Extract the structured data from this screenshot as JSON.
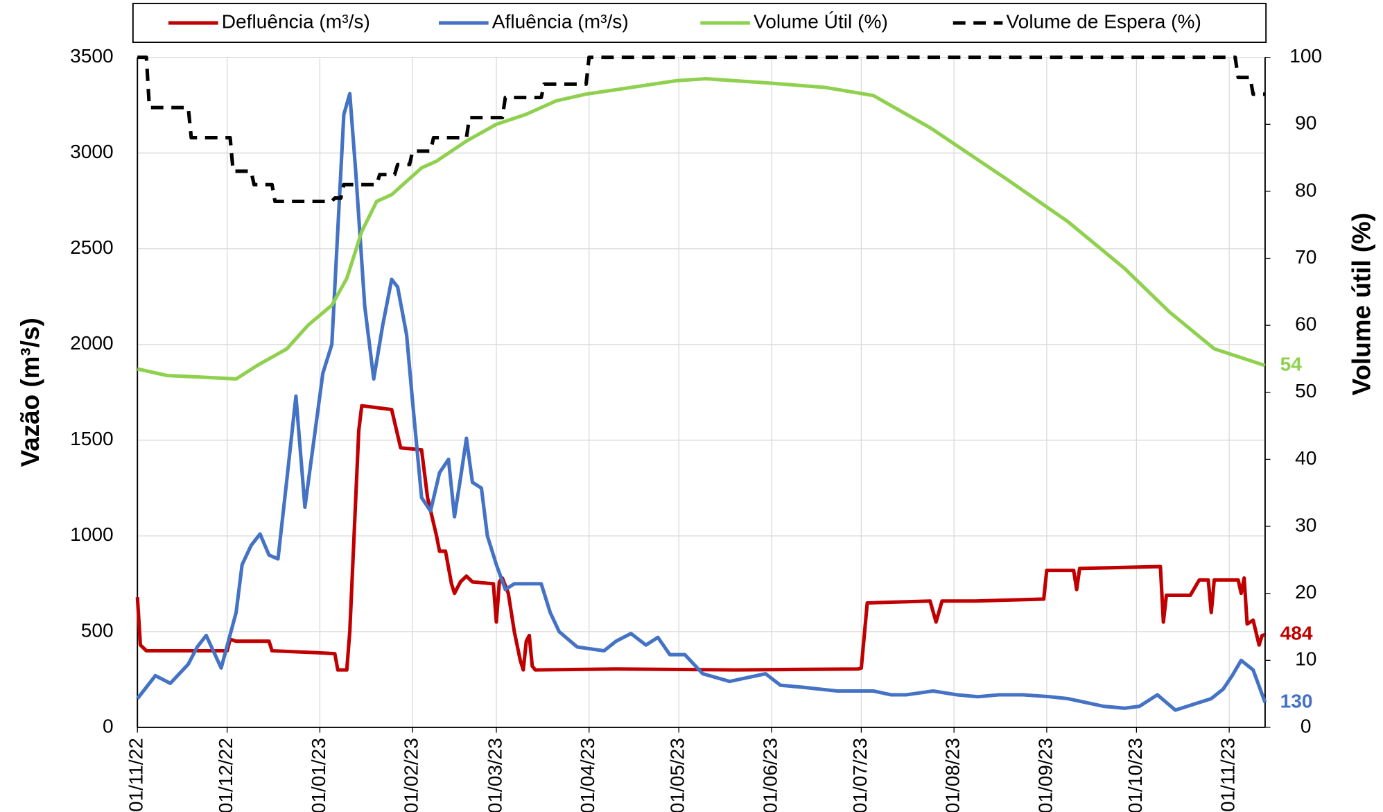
{
  "chart_data": {
    "type": "line",
    "y_title": "Vazão (m³/s)",
    "y2_title": "Volume útil (%)",
    "xlim": [
      "2022-11-01",
      "2023-11-13"
    ],
    "xticks": [
      {
        "value": "2022-11-01",
        "label": "01/11/22"
      },
      {
        "value": "2022-12-01",
        "label": "01/12/22"
      },
      {
        "value": "2023-01-01",
        "label": "01/01/23"
      },
      {
        "value": "2023-02-01",
        "label": "01/02/23"
      },
      {
        "value": "2023-03-01",
        "label": "01/03/23"
      },
      {
        "value": "2023-04-01",
        "label": "01/04/23"
      },
      {
        "value": "2023-05-01",
        "label": "01/05/23"
      },
      {
        "value": "2023-06-01",
        "label": "01/06/23"
      },
      {
        "value": "2023-07-01",
        "label": "01/07/23"
      },
      {
        "value": "2023-08-01",
        "label": "01/08/23"
      },
      {
        "value": "2023-09-01",
        "label": "01/09/23"
      },
      {
        "value": "2023-10-01",
        "label": "01/10/23"
      },
      {
        "value": "2023-11-01",
        "label": "01/11/23"
      }
    ],
    "ylim": [
      0,
      3500
    ],
    "yticks": [
      0,
      500,
      1000,
      1500,
      2000,
      2500,
      3000,
      3500
    ],
    "y2lim": [
      0,
      100
    ],
    "y2ticks": [
      0,
      10,
      20,
      30,
      40,
      50,
      60,
      70,
      80,
      90,
      100
    ],
    "grid": true,
    "legend": "top",
    "series": [
      {
        "name": "Defluência (m³/s)",
        "color": "#c00000",
        "dash": false,
        "end_label": true,
        "x": [
          "2022-11-01",
          "2022-11-02",
          "2022-11-04",
          "2022-12-01",
          "2022-12-02",
          "2022-12-04",
          "2022-12-15",
          "2022-12-16",
          "2022-12-31",
          "2023-01-06",
          "2023-01-07",
          "2023-01-10",
          "2023-01-11",
          "2023-01-14",
          "2023-01-15",
          "2023-01-25",
          "2023-01-28",
          "2023-02-04",
          "2023-02-06",
          "2023-02-09",
          "2023-02-10",
          "2023-02-12",
          "2023-02-14",
          "2023-02-15",
          "2023-02-17",
          "2023-02-19",
          "2023-02-21",
          "2023-02-28",
          "2023-03-01",
          "2023-03-02",
          "2023-03-03",
          "2023-03-05",
          "2023-03-07",
          "2023-03-09",
          "2023-03-10",
          "2023-03-11",
          "2023-03-12",
          "2023-03-13",
          "2023-03-14",
          "2023-04-10",
          "2023-05-20",
          "2023-06-30",
          "2023-07-01",
          "2023-07-03",
          "2023-07-24",
          "2023-07-26",
          "2023-07-28",
          "2023-08-08",
          "2023-08-31",
          "2023-09-01",
          "2023-09-10",
          "2023-09-11",
          "2023-09-12",
          "2023-10-09",
          "2023-10-10",
          "2023-10-11",
          "2023-10-19",
          "2023-10-22",
          "2023-10-25",
          "2023-10-26",
          "2023-10-27",
          "2023-11-04",
          "2023-11-05",
          "2023-11-06",
          "2023-11-07",
          "2023-11-09",
          "2023-11-11",
          "2023-11-12",
          "2023-11-13"
        ],
        "values": [
          680,
          430,
          400,
          400,
          460,
          450,
          450,
          400,
          390,
          385,
          300,
          300,
          500,
          1550,
          1680,
          1660,
          1460,
          1450,
          1200,
          1000,
          920,
          920,
          750,
          700,
          760,
          790,
          760,
          750,
          550,
          760,
          780,
          700,
          500,
          350,
          300,
          450,
          480,
          320,
          300,
          305,
          300,
          305,
          310,
          650,
          660,
          550,
          660,
          660,
          670,
          820,
          820,
          720,
          830,
          840,
          550,
          690,
          690,
          770,
          770,
          600,
          770,
          770,
          700,
          780,
          540,
          560,
          430,
          480,
          484
        ]
      },
      {
        "name": "Afluência (m³/s)",
        "color": "#4472c4",
        "dash": false,
        "end_label": true,
        "x": [
          "2022-11-01",
          "2022-11-07",
          "2022-11-12",
          "2022-11-18",
          "2022-11-21",
          "2022-11-24",
          "2022-11-29",
          "2022-12-04",
          "2022-12-06",
          "2022-12-09",
          "2022-12-12",
          "2022-12-15",
          "2022-12-18",
          "2022-12-21",
          "2022-12-24",
          "2022-12-27",
          "2022-12-30",
          "2023-01-02",
          "2023-01-05",
          "2023-01-07",
          "2023-01-09",
          "2023-01-11",
          "2023-01-13",
          "2023-01-16",
          "2023-01-19",
          "2023-01-22",
          "2023-01-25",
          "2023-01-27",
          "2023-01-30",
          "2023-02-01",
          "2023-02-04",
          "2023-02-07",
          "2023-02-10",
          "2023-02-13",
          "2023-02-15",
          "2023-02-17",
          "2023-02-19",
          "2023-02-21",
          "2023-02-24",
          "2023-02-26",
          "2023-03-01",
          "2023-03-04",
          "2023-03-07",
          "2023-03-11",
          "2023-03-16",
          "2023-03-19",
          "2023-03-22",
          "2023-03-28",
          "2023-04-06",
          "2023-04-10",
          "2023-04-15",
          "2023-04-20",
          "2023-04-24",
          "2023-04-28",
          "2023-05-03",
          "2023-05-09",
          "2023-05-18",
          "2023-05-24",
          "2023-05-30",
          "2023-06-04",
          "2023-06-11",
          "2023-06-17",
          "2023-06-23",
          "2023-07-05",
          "2023-07-11",
          "2023-07-16",
          "2023-07-25",
          "2023-08-02",
          "2023-08-09",
          "2023-08-16",
          "2023-08-24",
          "2023-09-02",
          "2023-09-08",
          "2023-09-14",
          "2023-09-20",
          "2023-09-27",
          "2023-10-02",
          "2023-10-08",
          "2023-10-14",
          "2023-10-20",
          "2023-10-26",
          "2023-10-30",
          "2023-11-02",
          "2023-11-05",
          "2023-11-09",
          "2023-11-13"
        ],
        "values": [
          150,
          270,
          230,
          330,
          420,
          480,
          310,
          600,
          850,
          950,
          1010,
          900,
          880,
          1300,
          1730,
          1150,
          1500,
          1850,
          2000,
          2600,
          3200,
          3310,
          2900,
          2200,
          1820,
          2100,
          2340,
          2300,
          2050,
          1700,
          1200,
          1130,
          1330,
          1400,
          1100,
          1300,
          1510,
          1280,
          1250,
          1000,
          850,
          720,
          750,
          750,
          750,
          600,
          500,
          420,
          400,
          450,
          490,
          430,
          470,
          380,
          380,
          280,
          240,
          260,
          280,
          220,
          210,
          200,
          190,
          190,
          170,
          170,
          190,
          170,
          160,
          170,
          170,
          160,
          150,
          130,
          110,
          100,
          110,
          170,
          90,
          120,
          150,
          200,
          270,
          350,
          300,
          130
        ]
      },
      {
        "name": "Volume Útil (%)",
        "color": "#8fd14f",
        "axis": "y2",
        "dash": false,
        "end_label": true,
        "x": [
          "2022-11-01",
          "2022-11-11",
          "2022-11-21",
          "2022-12-04",
          "2022-12-11",
          "2022-12-21",
          "2022-12-28",
          "2023-01-05",
          "2023-01-10",
          "2023-01-15",
          "2023-01-20",
          "2023-01-25",
          "2023-01-30",
          "2023-02-04",
          "2023-02-09",
          "2023-02-19",
          "2023-03-01",
          "2023-03-11",
          "2023-03-21",
          "2023-03-31",
          "2023-04-15",
          "2023-04-30",
          "2023-05-10",
          "2023-05-30",
          "2023-06-19",
          "2023-07-05",
          "2023-07-24",
          "2023-08-18",
          "2023-09-08",
          "2023-09-27",
          "2023-10-12",
          "2023-10-27",
          "2023-11-13"
        ],
        "values": [
          53.5,
          52.5,
          52.3,
          52,
          54,
          56.5,
          60,
          63,
          67,
          74,
          78.5,
          79.5,
          81.5,
          83.5,
          84.5,
          87.5,
          90,
          91.5,
          93.5,
          94.5,
          95.5,
          96.5,
          96.8,
          96.2,
          95.5,
          94.3,
          89.5,
          82,
          75.5,
          68.5,
          62,
          56.5,
          54
        ]
      },
      {
        "name": "Volume de Espera (%)",
        "color": "#000000",
        "axis": "y2",
        "dash": true,
        "end_label": false,
        "x": [
          "2022-11-01",
          "2022-11-04",
          "2022-11-05",
          "2022-11-18",
          "2022-11-19",
          "2022-12-02",
          "2022-12-03",
          "2022-12-09",
          "2022-12-10",
          "2022-12-16",
          "2022-12-17",
          "2023-01-05",
          "2023-01-06",
          "2023-01-08",
          "2023-01-09",
          "2023-01-20",
          "2023-01-21",
          "2023-01-26",
          "2023-01-27",
          "2023-01-31",
          "2023-02-01",
          "2023-02-07",
          "2023-02-08",
          "2023-02-19",
          "2023-02-20",
          "2023-03-03",
          "2023-03-04",
          "2023-03-16",
          "2023-03-17",
          "2023-03-31",
          "2023-04-01",
          "2023-11-03",
          "2023-11-04",
          "2023-11-08",
          "2023-11-09",
          "2023-11-13"
        ],
        "values": [
          100,
          100,
          92.5,
          92.5,
          88,
          88,
          83,
          83,
          81,
          81,
          78.5,
          78.5,
          79,
          79,
          81,
          81,
          82.5,
          82.5,
          84,
          84,
          86,
          86,
          88,
          88,
          91,
          91,
          94,
          94,
          96,
          96,
          100,
          100,
          97,
          97,
          94.5,
          94.5
        ]
      }
    ]
  }
}
